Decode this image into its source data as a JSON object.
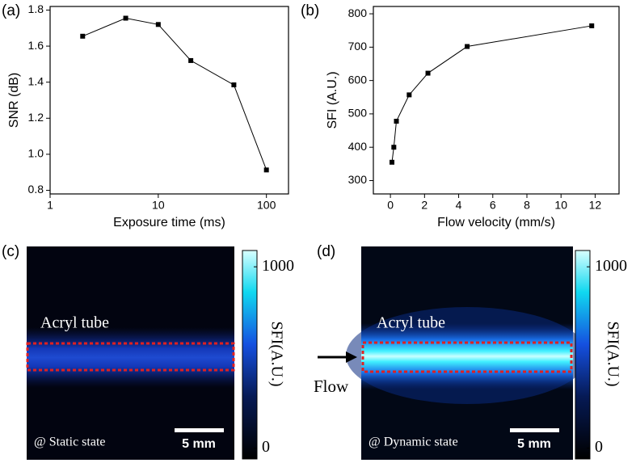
{
  "chart_data": [
    {
      "type": "line",
      "label": "(a)",
      "x_label": "Exposure time (ms)",
      "y_label": "SNR (dB)",
      "x": [
        2,
        5,
        10,
        20,
        50,
        100
      ],
      "values": [
        1.655,
        1.755,
        1.72,
        1.52,
        1.385,
        0.913
      ],
      "color": "#000000",
      "xscale": "log",
      "xlim": [
        1,
        160
      ],
      "xticks": [
        1,
        10,
        100
      ],
      "ylim": [
        0.78,
        1.82
      ],
      "yticks": [
        {
          "value": 0.8,
          "label": "0.8"
        },
        {
          "value": 1,
          "label": "1.0"
        },
        1.2,
        1.4,
        1.6,
        1.8
      ]
    },
    {
      "type": "line",
      "label": "(b)",
      "x_label": "Flow velocity (mm/s)",
      "y_label": "SFI (A.U.)",
      "x": [
        0.09,
        0.2,
        0.35,
        1.1,
        2.2,
        4.5,
        11.8
      ],
      "values": [
        355,
        400,
        478,
        557,
        622,
        702,
        764
      ],
      "color": "#000000",
      "xscale": "linear",
      "xlim": [
        -1,
        13.4
      ],
      "xticks": [
        0,
        2,
        4,
        6,
        8,
        10,
        12
      ],
      "ylim": [
        260,
        822
      ],
      "yticks": [
        300,
        400,
        500,
        600,
        700,
        800
      ]
    }
  ],
  "panels": [
    {
      "label": "(c)",
      "annotation": "Acryl tube",
      "state": "@ Static state",
      "scale_bar": "5 mm",
      "colorbar": {
        "title": "SFI(A.U.)",
        "lim": [
          -60,
          1090
        ],
        "ticks": [
          0,
          1000
        ]
      }
    },
    {
      "label": "(d)",
      "annotation": "Acryl tube",
      "flow": "Flow",
      "state": "@ Dynamic state",
      "scale_bar": "5 mm",
      "colorbar": {
        "title": "SFI(A.U.)",
        "lim": [
          -60,
          1090
        ],
        "ticks": [
          0,
          1000
        ]
      }
    }
  ]
}
